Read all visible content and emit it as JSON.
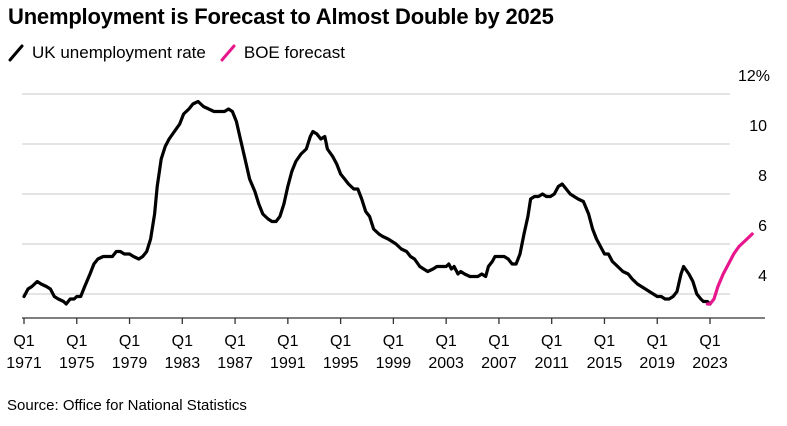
{
  "header": {
    "title": "Unemployment is Forecast to Almost Double by 2025"
  },
  "legend": [
    {
      "label": "UK unemployment rate",
      "color": "#000000"
    },
    {
      "label": "BOE forecast",
      "color": "#e8168c"
    }
  ],
  "footer": {
    "source": "Source: Office for National Statistics"
  },
  "chart_data": {
    "type": "line",
    "title": "Unemployment is Forecast to Almost Double by 2025",
    "xlabel": "",
    "ylabel": "",
    "ylim": [
      3.0,
      12.0
    ],
    "xlim": [
      1971.0,
      2026.3
    ],
    "grid": true,
    "legend_position": "top-left",
    "y_axis_position": "right",
    "y_ticks": [
      {
        "value": 12,
        "label": "12%"
      },
      {
        "value": 10,
        "label": "10"
      },
      {
        "value": 8,
        "label": "8"
      },
      {
        "value": 6,
        "label": "6"
      },
      {
        "value": 4,
        "label": "4"
      }
    ],
    "x_ticks": [
      {
        "value": 1971,
        "q": "Q1",
        "year": "1971"
      },
      {
        "value": 1975,
        "q": "Q1",
        "year": "1975"
      },
      {
        "value": 1979,
        "q": "Q1",
        "year": "1979"
      },
      {
        "value": 1983,
        "q": "Q1",
        "year": "1983"
      },
      {
        "value": 1987,
        "q": "Q1",
        "year": "1987"
      },
      {
        "value": 1991,
        "q": "Q1",
        "year": "1991"
      },
      {
        "value": 1995,
        "q": "Q1",
        "year": "1995"
      },
      {
        "value": 1999,
        "q": "Q1",
        "year": "1999"
      },
      {
        "value": 2003,
        "q": "Q1",
        "year": "2003"
      },
      {
        "value": 2007,
        "q": "Q1",
        "year": "2007"
      },
      {
        "value": 2011,
        "q": "Q1",
        "year": "2011"
      },
      {
        "value": 2015,
        "q": "Q1",
        "year": "2015"
      },
      {
        "value": 2019,
        "q": "Q1",
        "year": "2019"
      },
      {
        "value": 2023,
        "q": "Q1",
        "year": "2023"
      }
    ],
    "series": [
      {
        "name": "UK unemployment rate",
        "color": "#000000",
        "points": [
          [
            1971.0,
            3.9
          ],
          [
            1971.3,
            4.2
          ],
          [
            1971.6,
            4.3
          ],
          [
            1972.0,
            4.5
          ],
          [
            1972.3,
            4.4
          ],
          [
            1972.7,
            4.3
          ],
          [
            1973.0,
            4.2
          ],
          [
            1973.3,
            3.9
          ],
          [
            1973.6,
            3.8
          ],
          [
            1974.0,
            3.7
          ],
          [
            1974.2,
            3.6
          ],
          [
            1974.5,
            3.8
          ],
          [
            1974.8,
            3.8
          ],
          [
            1975.0,
            3.9
          ],
          [
            1975.3,
            3.9
          ],
          [
            1975.6,
            4.3
          ],
          [
            1976.0,
            4.8
          ],
          [
            1976.3,
            5.2
          ],
          [
            1976.6,
            5.4
          ],
          [
            1977.0,
            5.5
          ],
          [
            1977.3,
            5.5
          ],
          [
            1977.7,
            5.5
          ],
          [
            1978.0,
            5.7
          ],
          [
            1978.3,
            5.7
          ],
          [
            1978.6,
            5.6
          ],
          [
            1979.0,
            5.6
          ],
          [
            1979.3,
            5.5
          ],
          [
            1979.7,
            5.4
          ],
          [
            1980.0,
            5.5
          ],
          [
            1980.3,
            5.7
          ],
          [
            1980.6,
            6.2
          ],
          [
            1980.9,
            7.2
          ],
          [
            1981.1,
            8.3
          ],
          [
            1981.4,
            9.4
          ],
          [
            1981.7,
            9.9
          ],
          [
            1982.0,
            10.2
          ],
          [
            1982.4,
            10.5
          ],
          [
            1982.8,
            10.8
          ],
          [
            1983.1,
            11.2
          ],
          [
            1983.5,
            11.4
          ],
          [
            1983.8,
            11.6
          ],
          [
            1984.2,
            11.7
          ],
          [
            1984.6,
            11.5
          ],
          [
            1985.0,
            11.4
          ],
          [
            1985.4,
            11.3
          ],
          [
            1985.8,
            11.3
          ],
          [
            1986.2,
            11.3
          ],
          [
            1986.5,
            11.4
          ],
          [
            1986.8,
            11.3
          ],
          [
            1987.1,
            10.9
          ],
          [
            1987.4,
            10.2
          ],
          [
            1987.8,
            9.3
          ],
          [
            1988.1,
            8.6
          ],
          [
            1988.5,
            8.1
          ],
          [
            1988.8,
            7.6
          ],
          [
            1989.1,
            7.2
          ],
          [
            1989.5,
            7.0
          ],
          [
            1989.8,
            6.9
          ],
          [
            1990.1,
            6.9
          ],
          [
            1990.4,
            7.1
          ],
          [
            1990.7,
            7.6
          ],
          [
            1991.0,
            8.3
          ],
          [
            1991.3,
            8.9
          ],
          [
            1991.6,
            9.3
          ],
          [
            1992.0,
            9.6
          ],
          [
            1992.4,
            9.8
          ],
          [
            1992.7,
            10.3
          ],
          [
            1992.9,
            10.5
          ],
          [
            1993.2,
            10.4
          ],
          [
            1993.5,
            10.2
          ],
          [
            1993.8,
            10.3
          ],
          [
            1994.0,
            9.8
          ],
          [
            1994.4,
            9.5
          ],
          [
            1994.7,
            9.2
          ],
          [
            1995.0,
            8.8
          ],
          [
            1995.3,
            8.6
          ],
          [
            1995.6,
            8.4
          ],
          [
            1996.0,
            8.2
          ],
          [
            1996.3,
            8.2
          ],
          [
            1996.6,
            7.8
          ],
          [
            1996.9,
            7.3
          ],
          [
            1997.2,
            7.1
          ],
          [
            1997.5,
            6.6
          ],
          [
            1997.9,
            6.4
          ],
          [
            1998.2,
            6.3
          ],
          [
            1998.6,
            6.2
          ],
          [
            1998.9,
            6.1
          ],
          [
            1999.2,
            6.0
          ],
          [
            1999.6,
            5.8
          ],
          [
            2000.0,
            5.7
          ],
          [
            2000.3,
            5.5
          ],
          [
            2000.6,
            5.4
          ],
          [
            2001.0,
            5.1
          ],
          [
            2001.3,
            5.0
          ],
          [
            2001.6,
            4.9
          ],
          [
            2002.0,
            5.0
          ],
          [
            2002.3,
            5.1
          ],
          [
            2002.6,
            5.1
          ],
          [
            2003.0,
            5.1
          ],
          [
            2003.2,
            5.2
          ],
          [
            2003.4,
            5.0
          ],
          [
            2003.6,
            5.1
          ],
          [
            2003.9,
            4.8
          ],
          [
            2004.1,
            4.9
          ],
          [
            2004.4,
            4.8
          ],
          [
            2004.8,
            4.7
          ],
          [
            2005.1,
            4.7
          ],
          [
            2005.4,
            4.7
          ],
          [
            2005.7,
            4.8
          ],
          [
            2006.0,
            4.7
          ],
          [
            2006.2,
            5.1
          ],
          [
            2006.5,
            5.3
          ],
          [
            2006.7,
            5.5
          ],
          [
            2007.0,
            5.5
          ],
          [
            2007.4,
            5.5
          ],
          [
            2007.7,
            5.4
          ],
          [
            2008.0,
            5.2
          ],
          [
            2008.3,
            5.2
          ],
          [
            2008.6,
            5.6
          ],
          [
            2008.9,
            6.4
          ],
          [
            2009.2,
            7.1
          ],
          [
            2009.4,
            7.8
          ],
          [
            2009.7,
            7.9
          ],
          [
            2010.0,
            7.9
          ],
          [
            2010.3,
            8.0
          ],
          [
            2010.6,
            7.9
          ],
          [
            2010.9,
            7.9
          ],
          [
            2011.2,
            8.0
          ],
          [
            2011.5,
            8.3
          ],
          [
            2011.8,
            8.4
          ],
          [
            2012.1,
            8.2
          ],
          [
            2012.4,
            8.0
          ],
          [
            2012.7,
            7.9
          ],
          [
            2013.0,
            7.8
          ],
          [
            2013.4,
            7.7
          ],
          [
            2013.8,
            7.2
          ],
          [
            2014.1,
            6.6
          ],
          [
            2014.4,
            6.2
          ],
          [
            2014.7,
            5.9
          ],
          [
            2015.0,
            5.6
          ],
          [
            2015.3,
            5.6
          ],
          [
            2015.6,
            5.3
          ],
          [
            2016.0,
            5.1
          ],
          [
            2016.4,
            4.9
          ],
          [
            2016.8,
            4.8
          ],
          [
            2017.1,
            4.6
          ],
          [
            2017.5,
            4.4
          ],
          [
            2017.8,
            4.3
          ],
          [
            2018.1,
            4.2
          ],
          [
            2018.4,
            4.1
          ],
          [
            2018.7,
            4.0
          ],
          [
            2019.0,
            3.9
          ],
          [
            2019.3,
            3.9
          ],
          [
            2019.6,
            3.8
          ],
          [
            2019.9,
            3.8
          ],
          [
            2020.2,
            3.9
          ],
          [
            2020.5,
            4.1
          ],
          [
            2020.8,
            4.8
          ],
          [
            2021.0,
            5.1
          ],
          [
            2021.4,
            4.8
          ],
          [
            2021.7,
            4.5
          ],
          [
            2022.0,
            4.0
          ],
          [
            2022.3,
            3.8
          ],
          [
            2022.5,
            3.7
          ],
          [
            2022.8,
            3.7
          ],
          [
            2023.0,
            3.6
          ]
        ]
      },
      {
        "name": "BOE forecast",
        "color": "#e8168c",
        "points": [
          [
            2022.8,
            3.6
          ],
          [
            2023.0,
            3.6
          ],
          [
            2023.3,
            3.8
          ],
          [
            2023.6,
            4.3
          ],
          [
            2024.0,
            4.8
          ],
          [
            2024.4,
            5.2
          ],
          [
            2024.8,
            5.6
          ],
          [
            2025.2,
            5.9
          ],
          [
            2025.6,
            6.1
          ],
          [
            2026.0,
            6.3
          ],
          [
            2026.2,
            6.4
          ]
        ]
      }
    ]
  }
}
